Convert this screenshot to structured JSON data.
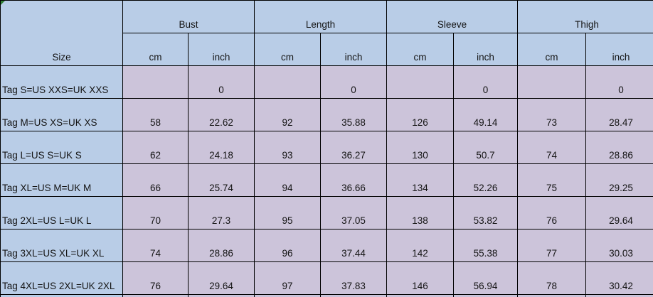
{
  "colors": {
    "header_blue": "#B9CDE7",
    "row_lavender": "#CCC4DA",
    "grid_line": "#000000",
    "marker_green": "#2E7D32"
  },
  "table": {
    "corner_header": "Size",
    "groups": [
      {
        "label": "Bust"
      },
      {
        "label": "Length"
      },
      {
        "label": "Sleeve"
      },
      {
        "label": "Thigh"
      }
    ],
    "unit_headers": [
      "cm",
      "inch",
      "cm",
      "inch",
      "cm",
      "inch",
      "cm",
      "inch"
    ],
    "rows": [
      {
        "size": "Tag S=US XXS=UK XXS",
        "values": [
          "",
          "0",
          "",
          "0",
          "",
          "0",
          "",
          "0"
        ]
      },
      {
        "size": "Tag M=US XS=UK XS",
        "values": [
          "58",
          "22.62",
          "92",
          "35.88",
          "126",
          "49.14",
          "73",
          "28.47"
        ]
      },
      {
        "size": "Tag L=US S=UK S",
        "values": [
          "62",
          "24.18",
          "93",
          "36.27",
          "130",
          "50.7",
          "74",
          "28.86"
        ]
      },
      {
        "size": "Tag XL=US M=UK M",
        "values": [
          "66",
          "25.74",
          "94",
          "36.66",
          "134",
          "52.26",
          "75",
          "29.25"
        ]
      },
      {
        "size": "Tag 2XL=US L=UK L",
        "values": [
          "70",
          "27.3",
          "95",
          "37.05",
          "138",
          "53.82",
          "76",
          "29.64"
        ]
      },
      {
        "size": "Tag 3XL=US XL=UK XL",
        "values": [
          "74",
          "28.86",
          "96",
          "37.44",
          "142",
          "55.38",
          "77",
          "30.03"
        ]
      },
      {
        "size": "Tag 4XL=US 2XL=UK 2XL",
        "values": [
          "76",
          "29.64",
          "97",
          "37.83",
          "146",
          "56.94",
          "78",
          "30.42"
        ]
      }
    ]
  }
}
